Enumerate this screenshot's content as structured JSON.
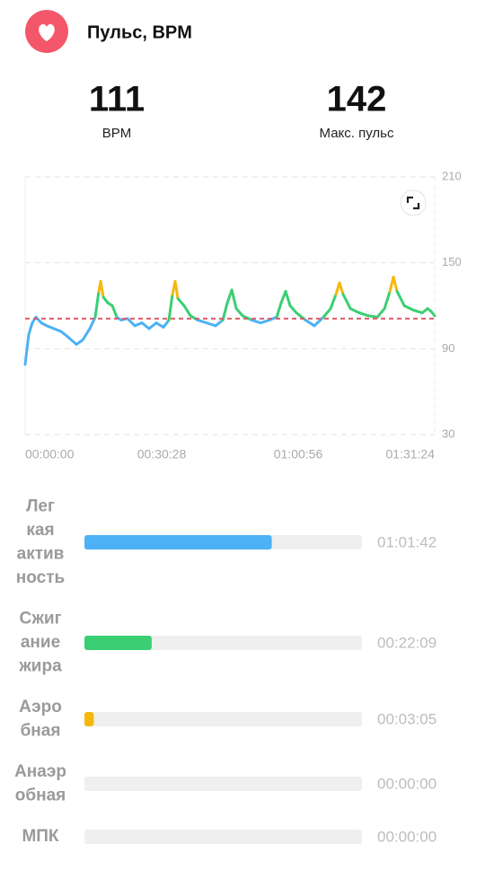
{
  "header": {
    "title": "Пульс, BPM"
  },
  "summary": [
    {
      "value": 111,
      "label": "BPM"
    },
    {
      "value": 142,
      "label": "Макс. пульс"
    }
  ],
  "chart": {
    "type": "line",
    "xlim": [
      0,
      5484
    ],
    "xticks": [
      {
        "value": 0,
        "label": "00:00:00"
      },
      {
        "value": 1828,
        "label": "00:30:28"
      },
      {
        "value": 3656,
        "label": "01:00:56"
      },
      {
        "value": 5484,
        "label": "01:31:24"
      }
    ],
    "ylim": [
      30,
      210
    ],
    "yticks": [
      30,
      90,
      150,
      210
    ],
    "grid": true,
    "average_color": "#e05a68",
    "x": [
      0,
      48,
      96,
      144,
      217,
      289,
      385,
      481,
      577,
      686,
      770,
      866,
      938,
      986,
      1011,
      1047,
      1107,
      1167,
      1227,
      1287,
      1371,
      1468,
      1564,
      1660,
      1756,
      1853,
      1925,
      1973,
      2009,
      2045,
      2129,
      2213,
      2310,
      2430,
      2550,
      2647,
      2707,
      2767,
      2827,
      2911,
      3032,
      3152,
      3272,
      3368,
      3428,
      3488,
      3548,
      3633,
      3753,
      3873,
      3994,
      4090,
      4162,
      4210,
      4258,
      4355,
      4475,
      4595,
      4715,
      4812,
      4884,
      4932,
      4980,
      5077,
      5197,
      5317,
      5389,
      5437,
      5484
    ],
    "values": [
      79,
      100,
      108,
      112,
      108,
      106,
      104,
      102,
      98,
      93,
      96,
      104,
      112,
      130,
      137,
      126,
      122,
      120,
      112,
      110,
      111,
      106,
      108,
      104,
      108,
      105,
      110,
      128,
      137,
      125,
      120,
      113,
      110,
      108,
      106,
      110,
      122,
      131,
      118,
      113,
      110,
      108,
      110,
      112,
      122,
      130,
      120,
      115,
      110,
      106,
      112,
      118,
      128,
      136,
      128,
      118,
      115,
      113,
      112,
      118,
      130,
      140,
      130,
      120,
      117,
      115,
      118,
      116,
      113
    ],
    "zones": [
      0,
      0,
      0,
      0,
      0,
      0,
      0,
      0,
      0,
      0,
      0,
      0,
      0,
      1,
      2,
      1,
      1,
      1,
      0,
      0,
      0,
      0,
      0,
      0,
      0,
      0,
      0,
      1,
      2,
      1,
      1,
      1,
      0,
      0,
      0,
      0,
      1,
      1,
      1,
      1,
      0,
      0,
      0,
      0,
      1,
      1,
      1,
      1,
      0,
      0,
      0,
      1,
      1,
      2,
      1,
      1,
      1,
      1,
      0,
      1,
      1,
      2,
      1,
      1,
      1,
      1,
      1,
      1,
      1
    ]
  },
  "zones": [
    {
      "lines": [
        "Лег",
        "кая",
        "актив",
        "ность"
      ],
      "seconds": 3702,
      "value_label": "01:01:42",
      "color": "#4db1f5"
    },
    {
      "lines": [
        "Сжиг",
        "ание",
        "жира"
      ],
      "seconds": 1329,
      "value_label": "00:22:09",
      "color": "#3acf73"
    },
    {
      "lines": [
        "Аэро",
        "бная"
      ],
      "seconds": 185,
      "value_label": "00:03:05",
      "color": "#f6b80f"
    },
    {
      "lines": [
        "Анаэр",
        "обная"
      ],
      "seconds": 0,
      "value_label": "00:00:00",
      "color": "#f4a23a"
    },
    {
      "lines": [
        "МПК"
      ],
      "seconds": 0,
      "value_label": "00:00:00",
      "color": "#f05e5e"
    }
  ]
}
